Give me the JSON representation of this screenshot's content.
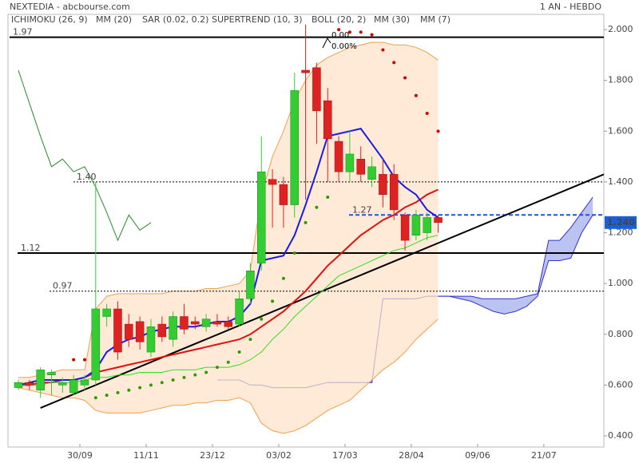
{
  "chart_data": {
    "type": "candlestick",
    "title": "NEXTEDIA - abcbourse.com",
    "period": "1 AN - HEBDO",
    "xlim": [
      -0.94,
      53.0
    ],
    "xticks": [
      {
        "value": 5.57,
        "label": "30/09"
      },
      {
        "value": 11.57,
        "label": "11/11"
      },
      {
        "value": 17.57,
        "label": "23/12"
      },
      {
        "value": 23.57,
        "label": "03/02"
      },
      {
        "value": 29.57,
        "label": "17/03"
      },
      {
        "value": 35.57,
        "label": "28/04"
      },
      {
        "value": 41.57,
        "label": "09/06"
      },
      {
        "value": 47.57,
        "label": "21/07"
      }
    ],
    "ylim": [
      0.356,
      2.06
    ],
    "yticks": [
      {
        "value": 0.4,
        "label": "0.400"
      },
      {
        "value": 0.6,
        "label": "0.600"
      },
      {
        "value": 0.8,
        "label": "0.800"
      },
      {
        "value": 1.0,
        "label": "1.000"
      },
      {
        "value": 1.2,
        "label": "1.200"
      },
      {
        "value": 1.4,
        "label": "1.400"
      },
      {
        "value": 1.6,
        "label": "1.600"
      },
      {
        "value": 1.8,
        "label": "1.800"
      },
      {
        "value": 2.0,
        "label": "2.000"
      }
    ],
    "up_color": "#33cc33",
    "down_color": "#dd2222",
    "x": [
      0,
      1,
      2,
      3,
      4,
      5,
      6,
      7,
      8,
      9,
      10,
      11,
      12,
      13,
      14,
      15,
      16,
      17,
      18,
      19,
      20,
      21,
      22,
      23,
      24,
      25,
      26,
      27,
      28,
      29,
      30,
      31,
      32,
      33,
      34,
      35,
      36,
      37,
      38
    ],
    "open": [
      0.59,
      0.61,
      0.58,
      0.64,
      0.6,
      0.57,
      0.6,
      0.62,
      0.87,
      0.9,
      0.84,
      0.85,
      0.73,
      0.84,
      0.78,
      0.87,
      0.85,
      0.83,
      0.85,
      0.85,
      0.84,
      0.94,
      1.08,
      1.41,
      1.39,
      1.31,
      1.84,
      1.85,
      1.72,
      1.56,
      1.44,
      1.49,
      1.41,
      1.43,
      1.43,
      1.27,
      1.19,
      1.2,
      1.26
    ],
    "high": [
      0.62,
      0.62,
      0.67,
      0.66,
      0.63,
      0.64,
      0.64,
      1.4,
      0.92,
      0.93,
      0.88,
      0.87,
      0.86,
      0.87,
      0.89,
      0.92,
      0.87,
      0.88,
      0.88,
      0.87,
      0.97,
      1.08,
      1.58,
      1.45,
      1.42,
      1.83,
      2.02,
      1.87,
      1.77,
      1.58,
      1.6,
      1.54,
      1.5,
      1.49,
      1.47,
      1.28,
      1.29,
      1.28,
      1.27
    ],
    "low": [
      0.58,
      0.58,
      0.55,
      0.56,
      0.57,
      0.56,
      0.58,
      0.6,
      0.83,
      0.7,
      0.75,
      0.74,
      0.71,
      0.77,
      0.75,
      0.8,
      0.82,
      0.81,
      0.83,
      0.82,
      0.83,
      0.92,
      1.05,
      1.22,
      1.22,
      1.26,
      1.33,
      1.55,
      1.4,
      1.4,
      1.4,
      1.4,
      1.38,
      1.3,
      1.25,
      1.13,
      1.17,
      1.17,
      1.2
    ],
    "close": [
      0.61,
      0.6,
      0.66,
      0.65,
      0.61,
      0.62,
      0.62,
      0.9,
      0.9,
      0.73,
      0.78,
      0.77,
      0.83,
      0.79,
      0.87,
      0.82,
      0.84,
      0.86,
      0.84,
      0.83,
      0.94,
      1.05,
      1.44,
      1.39,
      1.31,
      1.76,
      1.83,
      1.68,
      1.57,
      1.44,
      1.51,
      1.43,
      1.46,
      1.35,
      1.29,
      1.17,
      1.27,
      1.26,
      1.24
    ],
    "series": [
      {
        "name": "ICHIMOKU (26, 9)",
        "color": "#3333cc",
        "style": "cloud",
        "x": [
          18,
          19,
          20,
          21,
          22,
          23,
          24,
          25,
          26,
          27,
          28,
          29,
          30,
          31,
          32,
          33,
          34,
          35,
          36,
          37,
          38,
          39,
          40,
          41,
          42,
          43,
          44,
          45,
          46,
          47,
          48,
          49,
          50,
          51,
          52
        ],
        "values": [
          0.62,
          0.62,
          0.62,
          0.6,
          0.6,
          0.59,
          0.59,
          0.59,
          0.59,
          0.6,
          0.61,
          0.61,
          0.61,
          0.61,
          0.61,
          0.94,
          0.94,
          0.94,
          0.94,
          0.95,
          0.95,
          0.95,
          0.95,
          0.95,
          0.94,
          0.94,
          0.94,
          0.94,
          0.95,
          0.96,
          1.17,
          1.17,
          1.22,
          1.28,
          1.34
        ],
        "values_b": [
          0.62,
          0.62,
          0.62,
          0.6,
          0.6,
          0.59,
          0.59,
          0.59,
          0.59,
          0.6,
          0.61,
          0.61,
          0.61,
          0.61,
          0.61,
          0.94,
          0.94,
          0.94,
          0.94,
          0.95,
          0.95,
          0.95,
          0.94,
          0.93,
          0.91,
          0.89,
          0.88,
          0.89,
          0.91,
          0.95,
          1.09,
          1.09,
          1.1,
          1.2,
          1.27
        ]
      },
      {
        "name": "MM (20)",
        "color": "#e01010",
        "style": "line",
        "values": [
          0.6,
          0.6,
          0.61,
          0.61,
          0.62,
          0.62,
          0.63,
          0.65,
          0.66,
          0.67,
          0.68,
          0.69,
          0.7,
          0.71,
          0.72,
          0.73,
          0.74,
          0.75,
          0.76,
          0.77,
          0.78,
          0.8,
          0.83,
          0.86,
          0.89,
          0.93,
          0.97,
          1.02,
          1.07,
          1.11,
          1.15,
          1.19,
          1.22,
          1.25,
          1.27,
          1.3,
          1.32,
          1.35,
          1.37
        ]
      },
      {
        "name": "SAR (0.02, 0.2)",
        "color": "#cc0000",
        "below_color": "#339900",
        "style": "dots",
        "values": [
          null,
          null,
          null,
          null,
          null,
          0.7,
          0.7,
          0.55,
          0.56,
          0.57,
          0.58,
          0.59,
          0.6,
          0.61,
          0.62,
          0.63,
          0.64,
          0.65,
          0.67,
          0.69,
          0.73,
          0.78,
          0.86,
          0.93,
          1.02,
          1.12,
          1.24,
          1.3,
          1.34,
          2.0,
          1.99,
          1.99,
          1.98,
          1.92,
          1.87,
          1.81,
          1.74,
          1.67,
          1.6
        ]
      },
      {
        "name": "SUPERTREND (10, 3)",
        "color": "#2a8a2a",
        "style": "line",
        "values": [
          1.84,
          1.71,
          1.58,
          1.46,
          1.49,
          1.44,
          1.46,
          1.38,
          1.28,
          1.17,
          1.27,
          1.21,
          1.24,
          null,
          null,
          null,
          null,
          null,
          null,
          null,
          null,
          null,
          null,
          null,
          null,
          null,
          null,
          null,
          null,
          null,
          null,
          null,
          null,
          null,
          null,
          null,
          null,
          null,
          null
        ]
      },
      {
        "name": "BOLL (20, 2)",
        "color": "#f0a050",
        "style": "band",
        "values": [
          0.63,
          0.63,
          0.64,
          0.65,
          0.66,
          0.66,
          0.66,
          0.9,
          0.95,
          0.96,
          0.96,
          0.96,
          0.96,
          0.96,
          0.97,
          0.97,
          0.97,
          0.98,
          0.98,
          0.99,
          1.0,
          1.05,
          1.35,
          1.5,
          1.6,
          1.72,
          1.8,
          1.86,
          1.89,
          1.91,
          1.93,
          1.94,
          1.95,
          1.95,
          1.94,
          1.94,
          1.93,
          1.91,
          1.88
        ],
        "values_b": [
          0.59,
          0.58,
          0.57,
          0.56,
          0.55,
          0.55,
          0.54,
          0.5,
          0.49,
          0.49,
          0.49,
          0.49,
          0.5,
          0.51,
          0.52,
          0.52,
          0.53,
          0.53,
          0.54,
          0.54,
          0.55,
          0.53,
          0.45,
          0.42,
          0.41,
          0.42,
          0.44,
          0.47,
          0.5,
          0.52,
          0.54,
          0.58,
          0.62,
          0.66,
          0.69,
          0.73,
          0.78,
          0.82,
          0.86
        ]
      },
      {
        "name": "MM (30)",
        "color": "#33dd22",
        "style": "line",
        "values": [
          0.6,
          0.6,
          0.6,
          0.61,
          0.61,
          0.61,
          0.62,
          0.63,
          0.63,
          0.64,
          0.64,
          0.65,
          0.65,
          0.65,
          0.66,
          0.66,
          0.66,
          0.67,
          0.67,
          0.67,
          0.68,
          0.7,
          0.73,
          0.78,
          0.82,
          0.87,
          0.91,
          0.95,
          0.99,
          1.03,
          1.05,
          1.07,
          1.09,
          1.11,
          1.13,
          1.14,
          1.16,
          1.18,
          1.19
        ]
      },
      {
        "name": "MM (7)",
        "color": "#1a1ae6",
        "style": "line",
        "values": [
          0.6,
          0.61,
          0.62,
          0.62,
          0.62,
          0.62,
          0.63,
          0.66,
          0.73,
          0.76,
          0.78,
          0.79,
          0.81,
          0.82,
          0.83,
          0.83,
          0.83,
          0.84,
          0.85,
          0.85,
          0.87,
          0.92,
          1.09,
          1.1,
          1.11,
          1.19,
          1.31,
          1.44,
          1.58,
          1.59,
          1.6,
          1.61,
          1.55,
          1.49,
          1.42,
          1.38,
          1.35,
          1.29,
          1.26
        ]
      }
    ],
    "levels": [
      {
        "value": 1.97,
        "style": "solid",
        "color": "#000000"
      },
      {
        "value": 1.4,
        "label": "1.40",
        "style": "dotted",
        "color": "#000000"
      },
      {
        "value": 1.12,
        "style": "solid",
        "color": "#000000"
      },
      {
        "value": 0.97,
        "style": "dotted",
        "color": "#000000"
      },
      {
        "value": 1.27,
        "style": "dashed",
        "color": "#2255dd"
      }
    ],
    "trendline": {
      "x": [
        2,
        53
      ],
      "y": [
        0.51,
        1.43
      ],
      "color": "#000000"
    },
    "last": {
      "value": 1.24,
      "label": "1.240",
      "color": "#1a5fd6"
    },
    "annotations": [
      "0.00",
      "0.00%"
    ]
  }
}
